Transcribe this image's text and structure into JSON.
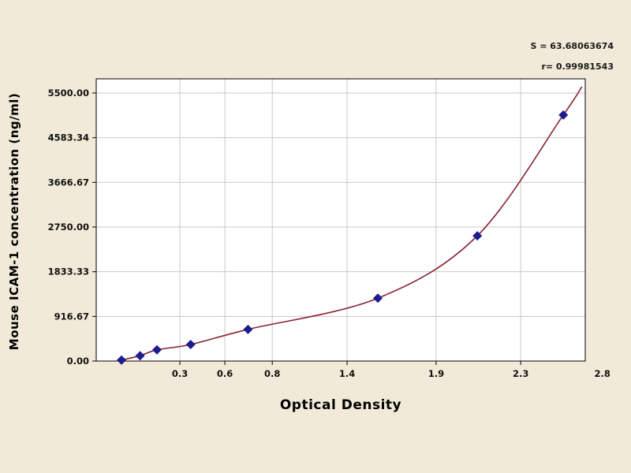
{
  "fit": {
    "s_label": "S = 63.68063674",
    "r_label": "r= 0.99981543"
  },
  "chart_data": {
    "type": "scatter",
    "title": "",
    "xlabel": "Optical Density",
    "ylabel": "Mouse ICAM-1 concentration (ng/ml)",
    "xlim": [
      0,
      2.9
    ],
    "ylim": [
      0,
      5500
    ],
    "grid": true,
    "legend": "none",
    "x_ticks": [
      {
        "label": "0.3",
        "f": 0.171
      },
      {
        "label": "0.6",
        "f": 0.263
      },
      {
        "label": "0.8",
        "f": 0.36
      },
      {
        "label": "1.4",
        "f": 0.513
      },
      {
        "label": "1.9",
        "f": 0.695
      },
      {
        "label": "2.3",
        "f": 0.868
      },
      {
        "label": "2.8",
        "f": 1.035
      }
    ],
    "y_ticks": [
      {
        "label": "0.00",
        "value": 0
      },
      {
        "label": "916.67",
        "value": 916.67
      },
      {
        "label": "1833.33",
        "value": 1833.33
      },
      {
        "label": "2750.00",
        "value": 2750
      },
      {
        "label": "3666.67",
        "value": 3666.67
      },
      {
        "label": "4583.34",
        "value": 4583.34
      },
      {
        "label": "5500.00",
        "value": 5500
      }
    ],
    "points": [
      {
        "od": 0.15,
        "conc": 20
      },
      {
        "od": 0.26,
        "conc": 110
      },
      {
        "od": 0.36,
        "conc": 230
      },
      {
        "od": 0.56,
        "conc": 340
      },
      {
        "od": 0.9,
        "conc": 650
      },
      {
        "od": 1.67,
        "conc": 1290
      },
      {
        "od": 2.26,
        "conc": 2570
      },
      {
        "od": 2.77,
        "conc": 5050
      }
    ],
    "curve_start": {
      "od": 0.12,
      "conc": 5
    },
    "curve_end": {
      "od": 2.88,
      "conc": 5630
    },
    "colors": {
      "background": "#f1ead8",
      "plot_bg": "#ffffff",
      "grid": "#c9c9c9",
      "border": "#000000",
      "curve": "#8a2332",
      "point": "#1c1c8f",
      "text": "#111111"
    }
  }
}
